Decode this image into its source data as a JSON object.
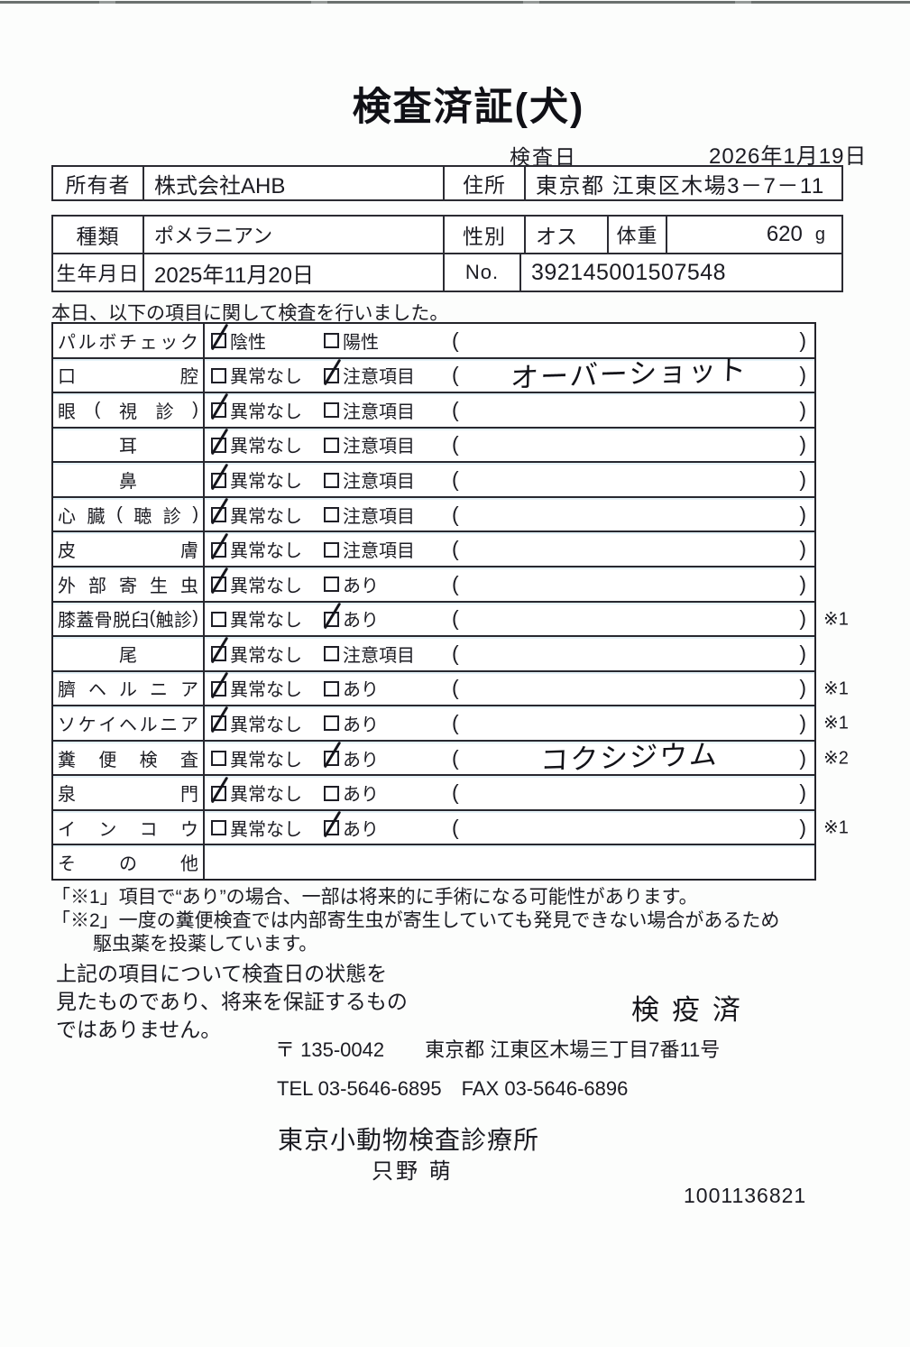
{
  "doc": {
    "title": "検査済証(犬)",
    "date_label": "検査日",
    "date_value": "2026年1月19日",
    "intro": "本日、以下の項目に関して検査を行いました。"
  },
  "owner": {
    "label": "所有者",
    "value": "株式会社AHB",
    "address_label": "住所",
    "address_value": "東京都 江東区木場3－7－11"
  },
  "info": {
    "breed_label": "種類",
    "breed_value": "ポメラニアン",
    "sex_label": "性別",
    "sex_value": "オス",
    "weight_label": "体重",
    "weight_value": "620",
    "weight_unit": "g",
    "birth_label": "生年月日",
    "birth_value": "2025年11月20日",
    "no_label": "No.",
    "no_value": "392145001507548"
  },
  "exam_table": {
    "rows": [
      {
        "label": "パルボチェック",
        "align": "justify",
        "opt1": "陰性",
        "opt2": "陽性",
        "checked": 1,
        "value": "",
        "mark": ""
      },
      {
        "label": "口腔",
        "align": "justify",
        "opt1": "異常なし",
        "opt2": "注意項目",
        "checked": 2,
        "value": "オーバーショット",
        "mark": ""
      },
      {
        "label": "眼(視診)",
        "align": "justify",
        "opt1": "異常なし",
        "opt2": "注意項目",
        "checked": 1,
        "value": "",
        "mark": ""
      },
      {
        "label": "耳",
        "align": "center",
        "opt1": "異常なし",
        "opt2": "注意項目",
        "checked": 1,
        "value": "",
        "mark": ""
      },
      {
        "label": "鼻",
        "align": "center",
        "opt1": "異常なし",
        "opt2": "注意項目",
        "checked": 1,
        "value": "",
        "mark": ""
      },
      {
        "label": "心臓(聴診)",
        "align": "justify",
        "opt1": "異常なし",
        "opt2": "注意項目",
        "checked": 1,
        "value": "",
        "mark": ""
      },
      {
        "label": "皮膚",
        "align": "justify",
        "opt1": "異常なし",
        "opt2": "注意項目",
        "checked": 1,
        "value": "",
        "mark": ""
      },
      {
        "label": "外部寄生虫",
        "align": "justify",
        "opt1": "異常なし",
        "opt2": "あり",
        "checked": 1,
        "value": "",
        "mark": ""
      },
      {
        "label": "膝蓋骨脱臼(触診)",
        "align": "justify",
        "opt1": "異常なし",
        "opt2": "あり",
        "checked": 2,
        "value": "",
        "mark": "※1"
      },
      {
        "label": "尾",
        "align": "center",
        "opt1": "異常なし",
        "opt2": "注意項目",
        "checked": 1,
        "value": "",
        "mark": ""
      },
      {
        "label": "臍ヘルニア",
        "align": "justify",
        "opt1": "異常なし",
        "opt2": "あり",
        "checked": 1,
        "value": "",
        "mark": "※1"
      },
      {
        "label": "ソケイヘルニア",
        "align": "justify",
        "opt1": "異常なし",
        "opt2": "あり",
        "checked": 1,
        "value": "",
        "mark": "※1"
      },
      {
        "label": "糞便検査",
        "align": "justify",
        "opt1": "異常なし",
        "opt2": "あり",
        "checked": 2,
        "value": "コクシジウム",
        "mark": "※2"
      },
      {
        "label": "泉門",
        "align": "justify",
        "opt1": "異常なし",
        "opt2": "あり",
        "checked": 1,
        "value": "",
        "mark": ""
      },
      {
        "label": "インコウ",
        "align": "justify",
        "opt1": "異常なし",
        "opt2": "あり",
        "checked": 2,
        "value": "",
        "mark": "※1"
      },
      {
        "label": "その他",
        "align": "justify",
        "opt1": null,
        "opt2": null,
        "checked": 0,
        "value": "",
        "mark": ""
      }
    ]
  },
  "notes": [
    {
      "text": "「※1」項目で“あり”の場合、一部は将来的に手術になる可能性があります。",
      "indent": false
    },
    {
      "text": "「※2」一度の糞便検査では内部寄生虫が寄生していても発見できない場合があるため",
      "indent": false
    },
    {
      "text": "駆虫薬を投薬しています。",
      "indent": true
    }
  ],
  "disclaimer": [
    "上記の項目について検査日の状態を",
    "見たものであり、将来を保証するもの",
    "ではありません。"
  ],
  "stamp": "検疫済",
  "footer": {
    "postal": "〒 135-0042",
    "address": "東京都 江東区木場三丁目7番11号",
    "tel": "TEL 03-5646-6895",
    "fax": "FAX 03-5646-6896",
    "clinic": "東京小動物検査診療所",
    "examiner": "只野 萌",
    "serial": "1001136821"
  },
  "colors": {
    "ink": "#1b1b22",
    "border": "#2b2b32",
    "scan_fringe": "#57aacb"
  }
}
